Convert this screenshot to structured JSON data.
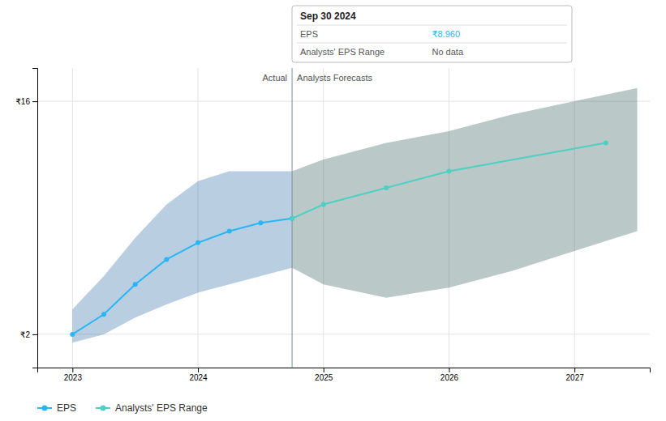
{
  "chart_data": {
    "type": "line",
    "xlim": [
      2022.72,
      2027.6
    ],
    "xticks": [
      2023,
      2024,
      2025,
      2026,
      2027
    ],
    "ylim": [
      0,
      18
    ],
    "yticks": [
      {
        "value": 2,
        "label": "₹2"
      },
      {
        "value": 16,
        "label": "₹16"
      }
    ],
    "grid": true,
    "legend": "bottom left",
    "series": [
      {
        "name": "EPS",
        "color": "#29b6f6",
        "marker": "circle",
        "x": [
          2023.0,
          2023.25,
          2023.5,
          2023.75,
          2024.0,
          2024.25,
          2024.5,
          2024.75
        ],
        "values": [
          2.0,
          3.2,
          5.0,
          6.5,
          7.5,
          8.2,
          8.7,
          8.96
        ]
      },
      {
        "name": "Analysts' EPS Range",
        "color": "#4dd0c4",
        "marker": "circle",
        "x": [
          2024.75,
          2025.0,
          2025.5,
          2026.0,
          2027.25
        ],
        "values": [
          8.96,
          9.8,
          10.8,
          11.8,
          13.5
        ]
      }
    ],
    "bands": [
      {
        "color": "#1a5ca0",
        "x": [
          2023.0,
          2023.25,
          2023.5,
          2023.75,
          2024.0,
          2024.25,
          2024.5,
          2024.75
        ],
        "lower": [
          1.5,
          2.0,
          3.0,
          3.8,
          4.5,
          5.0,
          5.5,
          6.0
        ],
        "upper": [
          3.5,
          5.5,
          7.8,
          9.8,
          11.2,
          11.8,
          11.8,
          11.8
        ]
      },
      {
        "color": "#1a4a44",
        "x": [
          2024.75,
          2025.0,
          2025.5,
          2026.0,
          2026.5,
          2027.0,
          2027.5
        ],
        "lower": [
          6.0,
          5.0,
          4.2,
          4.8,
          5.8,
          7.0,
          8.2
        ],
        "upper": [
          11.8,
          12.5,
          13.5,
          14.2,
          15.2,
          16.0,
          16.8
        ]
      }
    ],
    "divider_x": 2024.75,
    "divider_labels": [
      "Actual",
      "Analysts Forecasts"
    ],
    "tooltip": {
      "title": "Sep 30 2024",
      "rows": [
        {
          "label": "EPS",
          "value": "₹8.960"
        },
        {
          "label": "Analysts' EPS Range",
          "value": "No data"
        }
      ]
    }
  }
}
